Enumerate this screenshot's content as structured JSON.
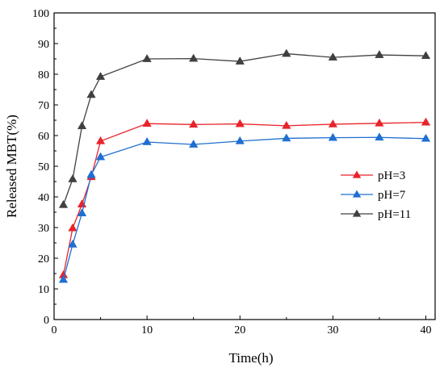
{
  "chart_data": {
    "type": "line",
    "title": "",
    "xlabel": "Time(h)",
    "ylabel": "Released MBT(%)",
    "xlim": [
      0,
      41
    ],
    "ylim": [
      0,
      100
    ],
    "xticks": [
      0,
      10,
      20,
      30,
      40
    ],
    "yticks": [
      0,
      10,
      20,
      30,
      40,
      50,
      60,
      70,
      80,
      90,
      100
    ],
    "grid": false,
    "legend_position": "right",
    "marker": "triangle",
    "x": [
      1,
      2,
      3,
      4,
      5,
      10,
      15,
      20,
      25,
      30,
      35,
      40
    ],
    "series": [
      {
        "name": "pH=3",
        "color": "#e8232a",
        "values": [
          14.5,
          29.8,
          37.6,
          46.5,
          58.2,
          63.9,
          63.6,
          63.8,
          63.2,
          63.7,
          64.0,
          64.3
        ]
      },
      {
        "name": "pH=7",
        "color": "#1f6fd1",
        "values": [
          13.0,
          24.5,
          34.7,
          47.2,
          53.0,
          57.9,
          57.1,
          58.2,
          59.1,
          59.3,
          59.4,
          59.0
        ]
      },
      {
        "name": "pH=11",
        "color": "#404040",
        "values": [
          37.4,
          45.8,
          63.1,
          73.3,
          79.2,
          85.0,
          85.1,
          84.2,
          86.7,
          85.5,
          86.3,
          86.0
        ]
      }
    ]
  }
}
